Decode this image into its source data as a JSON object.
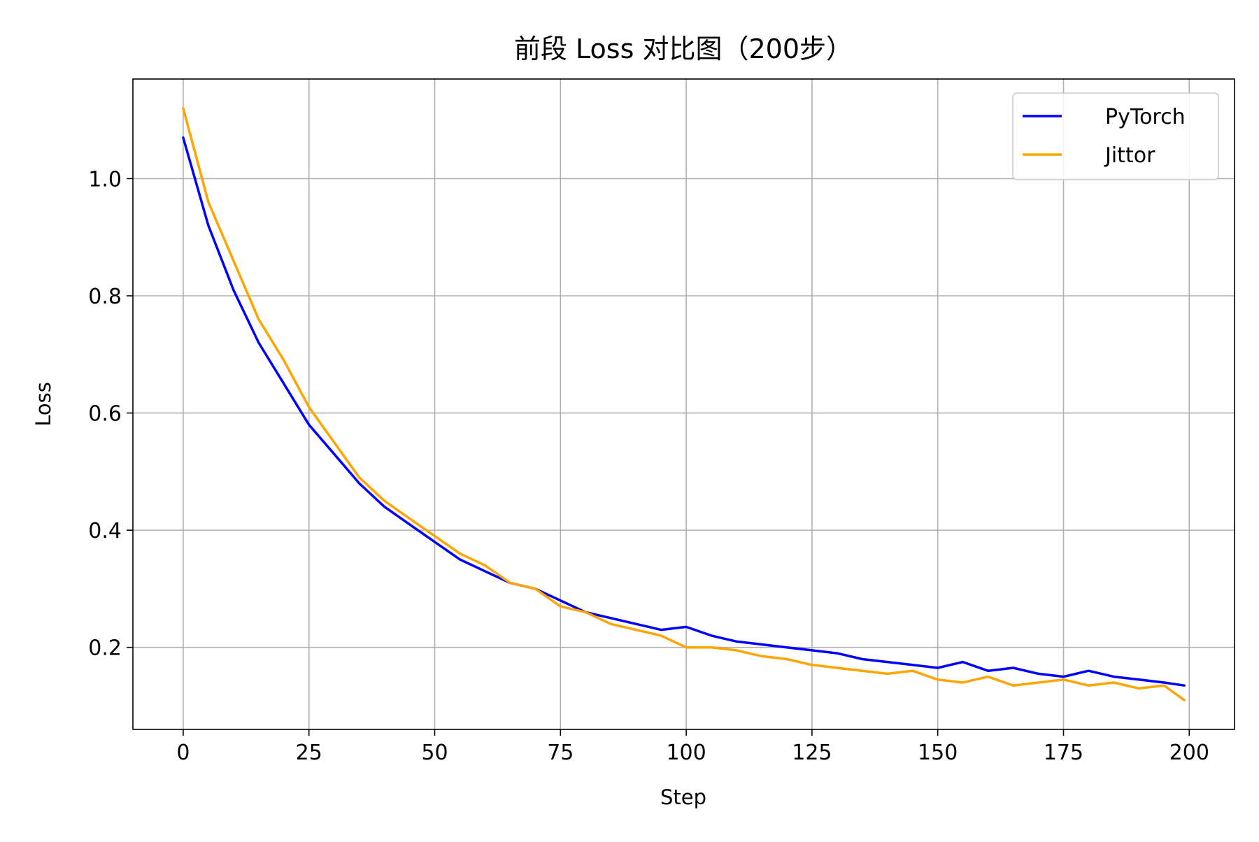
{
  "chart_data": {
    "type": "line",
    "title": "前段 Loss 对比图（200步）",
    "xlabel": "Step",
    "ylabel": "Loss",
    "xlim": [
      -10,
      209
    ],
    "ylim": [
      0.06,
      1.17
    ],
    "x_ticks": [
      0,
      25,
      50,
      75,
      100,
      125,
      150,
      175,
      200
    ],
    "y_ticks": [
      0.2,
      0.4,
      0.6,
      0.8,
      1.0
    ],
    "x_tick_labels": [
      "0",
      "25",
      "50",
      "75",
      "100",
      "125",
      "150",
      "175",
      "200"
    ],
    "y_tick_labels": [
      "0.2",
      "0.4",
      "0.6",
      "0.8",
      "1.0"
    ],
    "grid": true,
    "legend_position": "top-right",
    "series": [
      {
        "name": "PyTorch",
        "color": "#0000ff",
        "x": [
          0,
          5,
          10,
          15,
          20,
          25,
          30,
          35,
          40,
          45,
          50,
          55,
          60,
          65,
          70,
          75,
          80,
          85,
          90,
          95,
          100,
          105,
          110,
          115,
          120,
          125,
          130,
          135,
          140,
          145,
          150,
          155,
          160,
          165,
          170,
          175,
          180,
          185,
          190,
          195,
          199
        ],
        "y": [
          1.07,
          0.92,
          0.81,
          0.72,
          0.65,
          0.58,
          0.53,
          0.48,
          0.44,
          0.41,
          0.38,
          0.35,
          0.33,
          0.31,
          0.3,
          0.28,
          0.26,
          0.25,
          0.24,
          0.23,
          0.235,
          0.22,
          0.21,
          0.205,
          0.2,
          0.195,
          0.19,
          0.18,
          0.175,
          0.17,
          0.165,
          0.175,
          0.16,
          0.165,
          0.155,
          0.15,
          0.16,
          0.15,
          0.145,
          0.14,
          0.135
        ]
      },
      {
        "name": "Jittor",
        "color": "#ffa500",
        "x": [
          0,
          5,
          10,
          15,
          20,
          25,
          30,
          35,
          40,
          45,
          50,
          55,
          60,
          65,
          70,
          75,
          80,
          85,
          90,
          95,
          100,
          105,
          110,
          115,
          120,
          125,
          130,
          135,
          140,
          145,
          150,
          155,
          160,
          165,
          170,
          175,
          180,
          185,
          190,
          195,
          199
        ],
        "y": [
          1.12,
          0.96,
          0.86,
          0.76,
          0.69,
          0.61,
          0.55,
          0.49,
          0.45,
          0.42,
          0.39,
          0.36,
          0.34,
          0.31,
          0.3,
          0.27,
          0.26,
          0.24,
          0.23,
          0.22,
          0.2,
          0.2,
          0.195,
          0.185,
          0.18,
          0.17,
          0.165,
          0.16,
          0.155,
          0.16,
          0.145,
          0.14,
          0.15,
          0.135,
          0.14,
          0.145,
          0.135,
          0.14,
          0.13,
          0.135,
          0.11
        ]
      }
    ]
  }
}
